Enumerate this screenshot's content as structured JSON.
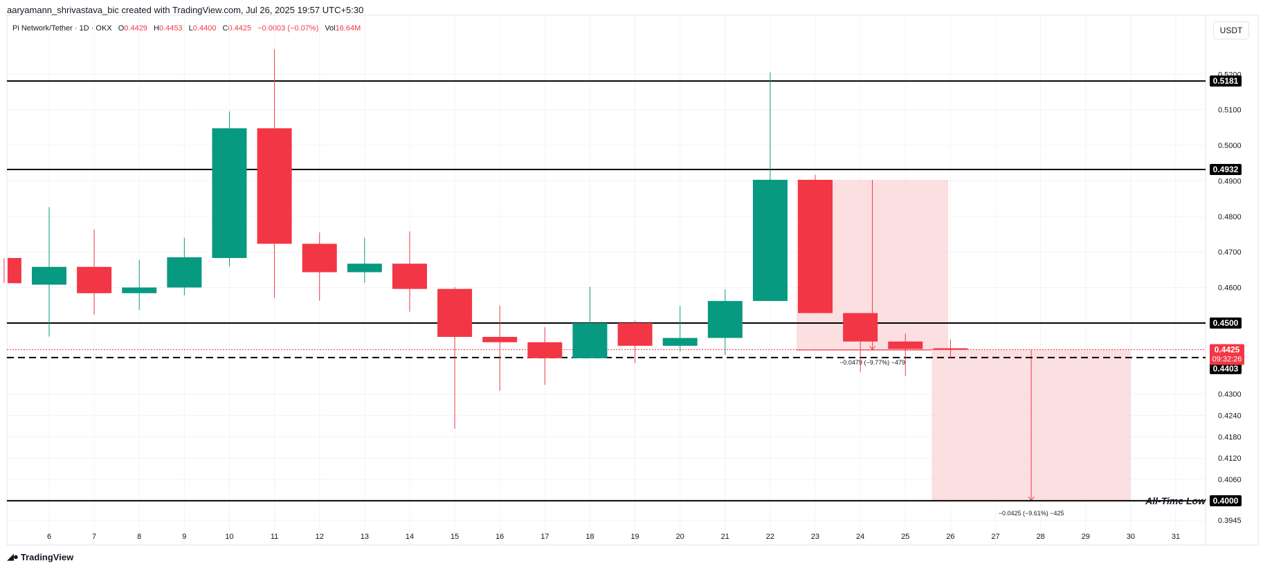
{
  "header": {
    "caption": "aaryamann_shrivastava_bic created with TradingView.com, Jul 26, 2025 19:57 UTC+5:30",
    "symbol": "Pi Network/Tether · 1D · OKX",
    "o_label": "O",
    "o_value": "0.4429",
    "h_label": "H",
    "h_value": "0.4453",
    "l_label": "L",
    "l_value": "0.4400",
    "c_label": "C",
    "c_value": "0.4425",
    "change": "−0.0003 (−0.07%)",
    "vol_label": "Vol",
    "vol_value": "16.64M"
  },
  "currency": "USDT",
  "footer": {
    "brand": "TradingView",
    "logo_icon": "tradingview-logo-icon"
  },
  "colors": {
    "up": "#089981",
    "down": "#f23645",
    "shade": "#fbd9dc",
    "level": "#000000"
  },
  "chart_data": {
    "type": "candlestick",
    "ylim": [
      0.3918,
      0.5296
    ],
    "y_ticks": [
      "0.3945",
      "0.4060",
      "0.4120",
      "0.4180",
      "0.4240",
      "0.4300",
      "0.4600",
      "0.4700",
      "0.4800",
      "0.4900",
      "0.5000",
      "0.5100",
      "0.5200"
    ],
    "x_ticks": [
      "6",
      "7",
      "8",
      "9",
      "10",
      "11",
      "12",
      "13",
      "14",
      "15",
      "16",
      "17",
      "18",
      "19",
      "20",
      "21",
      "22",
      "23",
      "24",
      "25",
      "26",
      "27",
      "28",
      "29",
      "30",
      "31"
    ],
    "candles": [
      {
        "d": 5,
        "o": 0.4683,
        "h": 0.4683,
        "l": 0.4612,
        "c": 0.4612
      },
      {
        "d": 6,
        "o": 0.4608,
        "h": 0.4826,
        "l": 0.4462,
        "c": 0.4658
      },
      {
        "d": 7,
        "o": 0.4658,
        "h": 0.4763,
        "l": 0.4524,
        "c": 0.4584
      },
      {
        "d": 8,
        "o": 0.4584,
        "h": 0.4678,
        "l": 0.4537,
        "c": 0.46
      },
      {
        "d": 9,
        "o": 0.46,
        "h": 0.474,
        "l": 0.4578,
        "c": 0.4685
      },
      {
        "d": 10,
        "o": 0.4683,
        "h": 0.5095,
        "l": 0.4659,
        "c": 0.5048
      },
      {
        "d": 11,
        "o": 0.5048,
        "h": 0.527,
        "l": 0.4571,
        "c": 0.4723
      },
      {
        "d": 12,
        "o": 0.4723,
        "h": 0.4755,
        "l": 0.4563,
        "c": 0.4643
      },
      {
        "d": 13,
        "o": 0.4643,
        "h": 0.474,
        "l": 0.4613,
        "c": 0.4667
      },
      {
        "d": 14,
        "o": 0.4667,
        "h": 0.4758,
        "l": 0.4532,
        "c": 0.4596
      },
      {
        "d": 15,
        "o": 0.4596,
        "h": 0.4601,
        "l": 0.4203,
        "c": 0.4461
      },
      {
        "d": 16,
        "o": 0.4461,
        "h": 0.4549,
        "l": 0.4309,
        "c": 0.4446
      },
      {
        "d": 17,
        "o": 0.4446,
        "h": 0.4488,
        "l": 0.4326,
        "c": 0.4401
      },
      {
        "d": 18,
        "o": 0.4401,
        "h": 0.4602,
        "l": 0.4401,
        "c": 0.45
      },
      {
        "d": 19,
        "o": 0.45,
        "h": 0.4507,
        "l": 0.4387,
        "c": 0.4436
      },
      {
        "d": 20,
        "o": 0.4436,
        "h": 0.4548,
        "l": 0.442,
        "c": 0.4458
      },
      {
        "d": 21,
        "o": 0.4458,
        "h": 0.4595,
        "l": 0.441,
        "c": 0.4562
      },
      {
        "d": 22,
        "o": 0.4562,
        "h": 0.5205,
        "l": 0.4562,
        "c": 0.4903
      },
      {
        "d": 23,
        "o": 0.4903,
        "h": 0.4917,
        "l": 0.4528,
        "c": 0.4528
      },
      {
        "d": 24,
        "o": 0.4528,
        "h": 0.4528,
        "l": 0.4363,
        "c": 0.4448
      },
      {
        "d": 25,
        "o": 0.4448,
        "h": 0.447,
        "l": 0.4351,
        "c": 0.4427
      },
      {
        "d": 26,
        "o": 0.4429,
        "h": 0.4453,
        "l": 0.44,
        "c": 0.4425
      }
    ],
    "levels": [
      {
        "value": 0.5181,
        "label": "0.5181"
      },
      {
        "value": 0.4932,
        "label": "0.4932"
      },
      {
        "value": 0.45,
        "label": "0.4500"
      },
      {
        "value": 0.4,
        "label": "0.4000",
        "note": "All-Time Low"
      }
    ],
    "dashed_level": {
      "value": 0.4403,
      "label": "0.4403"
    },
    "last_price": {
      "value": 0.4425,
      "label": "0.4425",
      "countdown": "09:32:26"
    },
    "measures": [
      {
        "x0": 23,
        "x1": 25.95,
        "y0": 0.4903,
        "y1": 0.4424,
        "label": "−0.0479 (−9.77%) −479"
      },
      {
        "x0": 26,
        "x1": 30,
        "y0": 0.4425,
        "y1": 0.4,
        "label": "−0.0425 (−9.61%) −425"
      }
    ]
  }
}
